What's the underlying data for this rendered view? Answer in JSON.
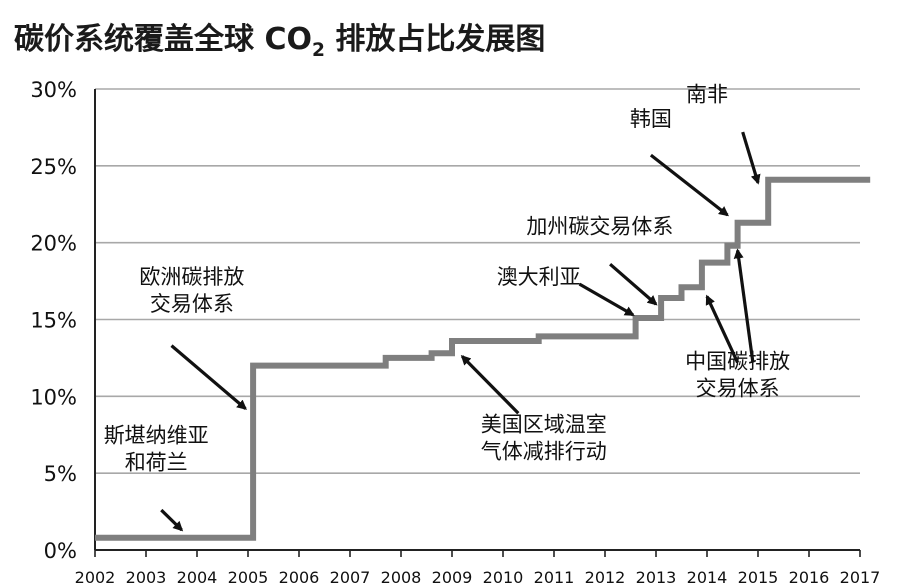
{
  "chart_data": {
    "type": "line",
    "title_main": "碳价系统覆盖全球 CO",
    "title_sub": "2",
    "title_tail": " 排放占比发展图",
    "xlabel": "",
    "ylabel": "",
    "xlim": [
      2002,
      2017
    ],
    "ylim": [
      0,
      30
    ],
    "x_ticks": [
      "2002",
      "2003",
      "2004",
      "2005",
      "2006",
      "2007",
      "2008",
      "2009",
      "2010",
      "2011",
      "2012",
      "2013",
      "2014",
      "2015",
      "2016",
      "2017"
    ],
    "y_ticks": [
      {
        "value": 0,
        "label": "0%"
      },
      {
        "value": 5,
        "label": "5%"
      },
      {
        "value": 10,
        "label": "10%"
      },
      {
        "value": 15,
        "label": "15%"
      },
      {
        "value": 20,
        "label": "20%"
      },
      {
        "value": 25,
        "label": "25%"
      },
      {
        "value": 30,
        "label": "30%"
      }
    ],
    "grid": true,
    "series": [
      {
        "color": "#7f7f7f",
        "step": true,
        "points": [
          [
            2002.0,
            0.8
          ],
          [
            2005.1,
            0.8
          ],
          [
            2005.1,
            12.0
          ],
          [
            2007.7,
            12.0
          ],
          [
            2007.7,
            12.5
          ],
          [
            2008.6,
            12.5
          ],
          [
            2008.6,
            12.8
          ],
          [
            2009.0,
            12.8
          ],
          [
            2009.0,
            13.6
          ],
          [
            2010.7,
            13.6
          ],
          [
            2010.7,
            13.9
          ],
          [
            2012.6,
            13.9
          ],
          [
            2012.6,
            15.1
          ],
          [
            2013.1,
            15.1
          ],
          [
            2013.1,
            16.4
          ],
          [
            2013.5,
            16.4
          ],
          [
            2013.5,
            17.1
          ],
          [
            2013.9,
            17.1
          ],
          [
            2013.9,
            18.7
          ],
          [
            2014.4,
            18.7
          ],
          [
            2014.4,
            19.8
          ],
          [
            2014.6,
            19.8
          ],
          [
            2014.6,
            21.3
          ],
          [
            2015.2,
            21.3
          ],
          [
            2015.2,
            24.1
          ],
          [
            2017.2,
            24.1
          ]
        ]
      }
    ],
    "annotations": [
      {
        "lines": [
          "斯堪纳维亚",
          "和荷兰"
        ],
        "x": 2003.2,
        "y": 7.0,
        "align": "middle",
        "arrow_from": [
          2003.3,
          2.6
        ],
        "arrow_to": [
          2003.7,
          1.3
        ]
      },
      {
        "lines": [
          "欧洲碳排放",
          "交易体系"
        ],
        "x": 2003.9,
        "y": 17.3,
        "align": "middle",
        "arrow_from": [
          2003.5,
          13.3
        ],
        "arrow_to": [
          2004.95,
          9.2
        ]
      },
      {
        "lines": [
          "美国区域温室",
          "气体减排行动"
        ],
        "x": 2010.8,
        "y": 7.7,
        "align": "middle",
        "arrow_from": [
          2010.3,
          8.9
        ],
        "arrow_to": [
          2009.2,
          12.6
        ]
      },
      {
        "lines": [
          "澳大利亚"
        ],
        "x": 2010.7,
        "y": 17.3,
        "align": "middle",
        "arrow_from": [
          2011.5,
          17.3
        ],
        "arrow_to": [
          2012.55,
          15.3
        ]
      },
      {
        "lines": [
          "加州碳交易体系"
        ],
        "x": 2011.9,
        "y": 20.6,
        "align": "middle",
        "arrow_from": [
          2012.1,
          18.6
        ],
        "arrow_to": [
          2013.0,
          16.0
        ]
      },
      {
        "lines": [
          "韩国"
        ],
        "x": 2012.9,
        "y": 27.6,
        "align": "middle",
        "arrow_from": [
          2012.9,
          25.7
        ],
        "arrow_to": [
          2014.4,
          21.8
        ]
      },
      {
        "lines": [
          "中国碳排放",
          "交易体系"
        ],
        "x": 2014.6,
        "y": 11.8,
        "align": "middle",
        "arrow_from": [
          2014.6,
          12.2
        ],
        "arrow_to": [
          2014.0,
          16.5
        ],
        "arrow2_from": [
          2014.9,
          12.2
        ],
        "arrow2_to": [
          2014.6,
          19.5
        ]
      },
      {
        "lines": [
          "南非"
        ],
        "x": 2014.0,
        "y": 29.2,
        "align": "middle",
        "arrow_from": [
          2014.7,
          27.2
        ],
        "arrow_to": [
          2015.0,
          23.9
        ]
      }
    ]
  }
}
